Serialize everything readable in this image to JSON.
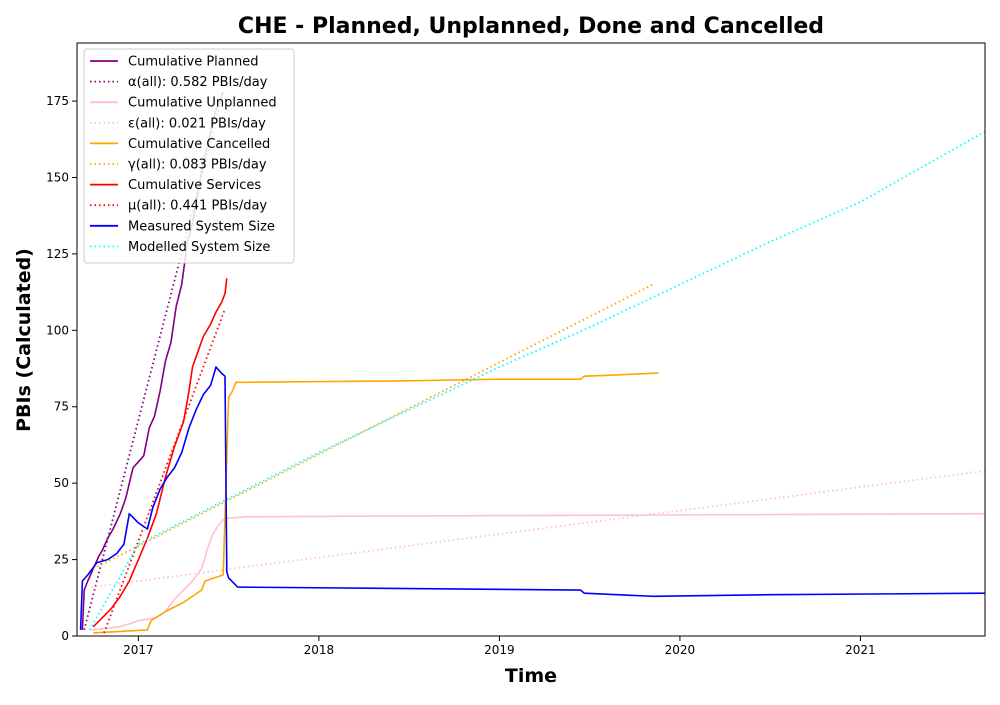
{
  "chart_data": {
    "type": "line",
    "title": "CHE - Planned, Unplanned, Done  and Cancelled",
    "xlabel": "Time",
    "ylabel": "PBIs (Calculated)",
    "xlim": [
      2016.66,
      2021.69
    ],
    "ylim": [
      0,
      194
    ],
    "x_ticks": [
      {
        "value": 2017,
        "label": "2017"
      },
      {
        "value": 2018,
        "label": "2018"
      },
      {
        "value": 2019,
        "label": "2019"
      },
      {
        "value": 2020,
        "label": "2020"
      },
      {
        "value": 2021,
        "label": "2021"
      }
    ],
    "y_ticks": [
      {
        "value": 0,
        "label": "0"
      },
      {
        "value": 25,
        "label": "25"
      },
      {
        "value": 50,
        "label": "50"
      },
      {
        "value": 75,
        "label": "75"
      },
      {
        "value": 100,
        "label": "100"
      },
      {
        "value": 125,
        "label": "125"
      },
      {
        "value": 150,
        "label": "150"
      },
      {
        "value": 175,
        "label": "175"
      }
    ],
    "grid": false,
    "legend_position": "top-left",
    "series": [
      {
        "name": "Cumulative Planned",
        "color": "#800080",
        "style": "solid",
        "x": [
          2016.69,
          2016.7,
          2016.72,
          2016.75,
          2016.78,
          2016.8,
          2016.83,
          2016.86,
          2016.9,
          2016.93,
          2016.97,
          2017.0,
          2017.03,
          2017.06,
          2017.09,
          2017.12,
          2017.15,
          2017.18,
          2017.21,
          2017.24,
          2017.27,
          2017.3,
          2017.33,
          2017.36,
          2017.4,
          2017.43,
          2017.47
        ],
        "y": [
          2,
          15,
          18,
          22,
          26,
          28,
          32,
          35,
          40,
          45,
          55,
          57,
          59,
          68,
          72,
          80,
          90,
          96,
          108,
          115,
          128,
          135,
          145,
          155,
          165,
          172,
          178
        ]
      },
      {
        "name": "α(all): 0.582 PBIs/day",
        "color": "#800080",
        "style": "dotted",
        "x": [
          2016.7,
          2017.47
        ],
        "y": [
          2,
          178
        ]
      },
      {
        "name": "Cumulative Unplanned",
        "color": "#ffc0cb",
        "style": "solid",
        "x": [
          2016.74,
          2016.9,
          2017.0,
          2017.1,
          2017.15,
          2017.2,
          2017.25,
          2017.3,
          2017.35,
          2017.38,
          2017.41,
          2017.44,
          2017.47,
          2017.49,
          2017.6,
          2018.5,
          2019.5,
          2020.5,
          2021.69
        ],
        "y": [
          2,
          3,
          5,
          6,
          8,
          12,
          15,
          18,
          22,
          28,
          33,
          36,
          38,
          38.5,
          39,
          39.3,
          39.5,
          39.7,
          40
        ]
      },
      {
        "name": "ε(all): 0.021 PBIs/day",
        "color": "#ffc0cb",
        "style": "dotted",
        "x": [
          2016.74,
          2021.69
        ],
        "y": [
          16,
          54
        ]
      },
      {
        "name": "Cumulative Cancelled",
        "color": "#ffa500",
        "style": "solid",
        "x": [
          2016.75,
          2016.9,
          2017.05,
          2017.07,
          2017.15,
          2017.25,
          2017.35,
          2017.37,
          2017.47,
          2017.5,
          2017.52,
          2017.54,
          2017.6,
          2018.5,
          2019.0,
          2019.45,
          2019.47,
          2019.6,
          2019.88
        ],
        "y": [
          1,
          1.5,
          2,
          5,
          8,
          11,
          15,
          18,
          20,
          78,
          80,
          83,
          83,
          83.5,
          84,
          84,
          85,
          85.3,
          86
        ]
      },
      {
        "name": "γ(all): 0.083 PBIs/day",
        "color": "#ffa500",
        "style": "dotted",
        "x": [
          2016.75,
          2019.85
        ],
        "y": [
          22,
          115
        ]
      },
      {
        "name": "Cumulative Services",
        "color": "#ff0000",
        "style": "solid",
        "x": [
          2016.75,
          2016.8,
          2016.85,
          2016.9,
          2016.95,
          2017.0,
          2017.05,
          2017.1,
          2017.15,
          2017.2,
          2017.25,
          2017.28,
          2017.3,
          2017.33,
          2017.36,
          2017.4,
          2017.43,
          2017.46,
          2017.48,
          2017.49
        ],
        "y": [
          3,
          6,
          9,
          13,
          18,
          25,
          32,
          40,
          52,
          62,
          70,
          80,
          88,
          93,
          98,
          102,
          106,
          109,
          112,
          117
        ]
      },
      {
        "name": "μ(all): 0.441 PBIs/day",
        "color": "#ff0000",
        "style": "dotted",
        "x": [
          2016.81,
          2017.48
        ],
        "y": [
          1,
          107
        ]
      },
      {
        "name": "Measured System Size",
        "color": "#0000ff",
        "style": "solid",
        "x": [
          2016.68,
          2016.69,
          2016.72,
          2016.77,
          2016.83,
          2016.88,
          2016.92,
          2016.95,
          2017.0,
          2017.05,
          2017.08,
          2017.12,
          2017.16,
          2017.2,
          2017.24,
          2017.28,
          2017.32,
          2017.36,
          2017.4,
          2017.43,
          2017.46,
          2017.48,
          2017.49,
          2017.5,
          2017.55,
          2018.5,
          2019.45,
          2019.47,
          2019.85,
          2020.5,
          2021.69
        ],
        "y": [
          2,
          18,
          20,
          24,
          25,
          27,
          30,
          40,
          37,
          35,
          42,
          48,
          52,
          55,
          60,
          68,
          74,
          79,
          82,
          88,
          86,
          85,
          21,
          19,
          16,
          15.5,
          15,
          14,
          13,
          13.5,
          14
        ]
      },
      {
        "name": "Modelled System Size",
        "color": "#00ffff",
        "style": "dotted",
        "x": [
          2016.73,
          2017.0,
          2017.5,
          2018.0,
          2018.5,
          2019.0,
          2019.5,
          2020.0,
          2020.5,
          2021.0,
          2021.69
        ],
        "y": [
          2,
          30,
          45,
          60,
          74,
          88,
          101,
          115,
          129,
          142,
          165
        ]
      }
    ]
  }
}
